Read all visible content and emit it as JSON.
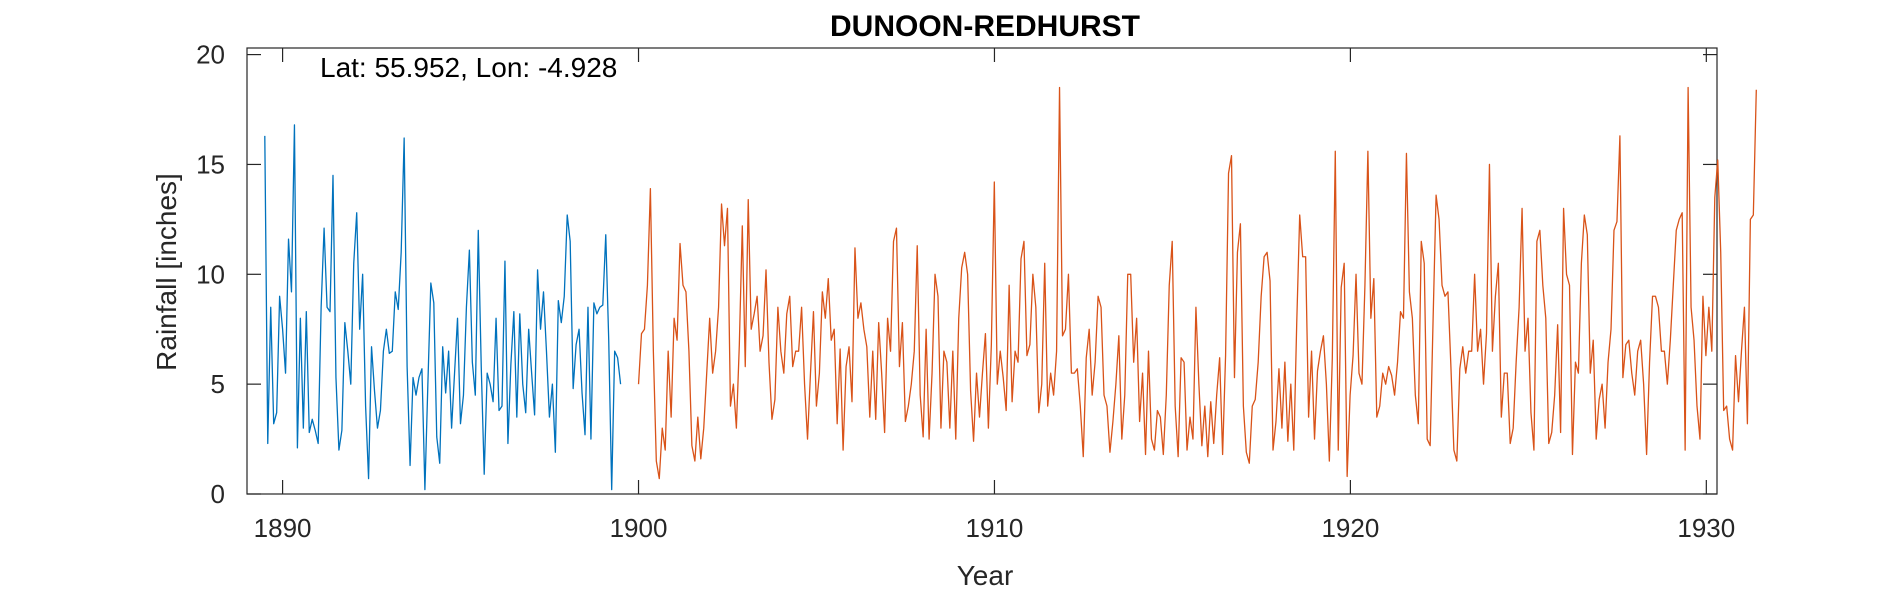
{
  "chart_data": {
    "type": "line",
    "title": "DUNOON-REDHURST",
    "xlabel": "Year",
    "ylabel": "Rainfall [inches]",
    "annotation": "Lat: 55.952, Lon: -4.928",
    "xlim": [
      1889,
      1930.3
    ],
    "ylim": [
      0,
      20.3
    ],
    "xticks": [
      1890,
      1900,
      1910,
      1920,
      1930
    ],
    "yticks": [
      0,
      5,
      10,
      15,
      20
    ],
    "grid": false,
    "legend": "none",
    "colors": {
      "series_blue": "#0072BD",
      "series_orange": "#D95319",
      "axis": "#262626"
    },
    "series": [
      {
        "color": "#0072BD",
        "x_start": 1889.5,
        "x_step": 0.0833,
        "values": [
          16.3,
          2.3,
          8.5,
          3.2,
          3.7,
          9.0,
          7.5,
          5.5,
          11.6,
          9.2,
          16.8,
          2.1,
          8.0,
          3.0,
          8.3,
          2.8,
          3.4,
          2.9,
          2.3,
          8.5,
          12.1,
          8.5,
          8.3,
          14.5,
          5.3,
          2.0,
          2.9,
          7.8,
          6.5,
          5.0,
          10.5,
          12.8,
          7.5,
          10.0,
          4.0,
          0.7,
          6.7,
          4.7,
          3.0,
          3.8,
          6.5,
          7.5,
          6.4,
          6.5,
          9.2,
          8.4,
          11.0,
          16.2,
          5.8,
          1.3,
          5.3,
          4.5,
          5.3,
          5.7,
          0.2,
          5.0,
          9.6,
          8.7,
          2.6,
          1.4,
          6.7,
          4.6,
          6.5,
          3.0,
          5.5,
          8.0,
          3.2,
          4.5,
          8.5,
          11.1,
          6.0,
          4.5,
          12.0,
          5.8,
          0.9,
          5.5,
          5.0,
          4.2,
          8.0,
          3.8,
          4.0,
          10.6,
          2.3,
          5.9,
          8.3,
          3.5,
          8.2,
          5.0,
          3.7,
          7.5,
          5.5,
          3.6,
          10.2,
          7.5,
          9.2,
          6.5,
          3.5,
          5.0,
          1.9,
          8.8,
          7.8,
          9.0,
          12.7,
          11.5,
          4.8,
          6.8,
          7.5,
          4.6,
          2.7,
          8.5,
          2.5,
          8.7,
          8.2,
          8.5,
          8.6,
          11.8,
          7.0,
          0.2,
          6.5,
          6.2,
          5.0
        ]
      },
      {
        "color": "#D95319",
        "x_start": 1900.0,
        "x_step": 0.0833,
        "values": [
          5.0,
          7.3,
          7.5,
          9.5,
          13.9,
          6.5,
          1.5,
          0.7,
          3.0,
          2.0,
          6.5,
          3.5,
          8.0,
          7.0,
          11.4,
          9.5,
          9.2,
          6.5,
          2.2,
          1.5,
          3.5,
          1.6,
          3.0,
          5.5,
          8.0,
          5.5,
          6.5,
          8.5,
          13.2,
          11.3,
          13.0,
          4.0,
          5.0,
          3.0,
          6.8,
          12.2,
          5.8,
          13.4,
          7.5,
          8.2,
          9.0,
          6.5,
          7.2,
          10.2,
          6.0,
          3.4,
          4.3,
          8.5,
          6.5,
          5.5,
          8.2,
          9.0,
          5.8,
          6.5,
          6.5,
          8.5,
          5.0,
          2.5,
          5.5,
          8.3,
          4.0,
          5.5,
          9.2,
          8.0,
          9.8,
          7.0,
          7.5,
          3.2,
          6.6,
          2.0,
          5.8,
          6.7,
          4.2,
          11.2,
          8.0,
          8.7,
          7.5,
          6.7,
          3.5,
          6.5,
          3.4,
          7.8,
          5.5,
          2.8,
          8.0,
          6.5,
          11.5,
          12.1,
          5.8,
          7.8,
          3.3,
          4.0,
          5.0,
          6.5,
          11.3,
          4.5,
          2.6,
          7.5,
          2.5,
          5.5,
          10.0,
          9.0,
          3.0,
          6.5,
          6.0,
          3.0,
          6.5,
          2.5,
          8.0,
          10.3,
          11.0,
          10.0,
          4.7,
          2.4,
          5.5,
          3.5,
          5.5,
          7.3,
          3.0,
          6.8,
          14.2,
          5.0,
          6.5,
          5.3,
          3.8,
          9.5,
          4.2,
          6.5,
          6.0,
          10.7,
          11.5,
          6.3,
          6.8,
          10.0,
          8.5,
          3.7,
          5.0,
          10.5,
          4.0,
          5.5,
          4.5,
          6.5,
          18.5,
          7.2,
          7.5,
          10.0,
          5.5,
          5.5,
          5.7,
          4.0,
          1.7,
          6.2,
          7.5,
          4.5,
          6.0,
          9.0,
          8.5,
          4.5,
          4.0,
          1.9,
          3.3,
          5.0,
          7.2,
          2.5,
          4.5,
          10.0,
          10.0,
          6.0,
          8.0,
          3.3,
          5.5,
          1.8,
          6.5,
          2.5,
          2.0,
          3.8,
          3.5,
          1.8,
          4.5,
          9.5,
          11.5,
          4.0,
          1.7,
          6.2,
          6.0,
          2.0,
          3.5,
          2.5,
          8.5,
          5.0,
          2.2,
          4.0,
          1.7,
          4.2,
          2.3,
          4.5,
          6.2,
          1.8,
          6.3,
          14.6,
          15.4,
          5.3,
          11.0,
          12.3,
          4.0,
          1.9,
          1.4,
          4.0,
          4.3,
          6.0,
          9.0,
          10.8,
          11.0,
          9.7,
          2.0,
          3.3,
          5.7,
          3.0,
          6.0,
          2.4,
          5.0,
          2.0,
          7.8,
          12.7,
          10.8,
          10.8,
          3.5,
          6.5,
          2.5,
          5.6,
          6.5,
          7.2,
          5.0,
          1.5,
          6.2,
          15.6,
          2.0,
          9.4,
          10.5,
          0.8,
          4.5,
          6.3,
          10.0,
          5.5,
          5.0,
          9.5,
          15.6,
          8.0,
          9.8,
          3.5,
          4.0,
          5.5,
          5.0,
          5.8,
          5.4,
          4.5,
          6.0,
          8.3,
          8.0,
          15.5,
          9.2,
          8.0,
          4.5,
          3.2,
          11.5,
          10.5,
          2.5,
          2.2,
          8.0,
          13.6,
          12.5,
          9.5,
          9.0,
          9.2,
          5.8,
          2.0,
          1.5,
          5.7,
          6.7,
          5.5,
          6.5,
          6.5,
          10.0,
          6.5,
          7.5,
          5.0,
          7.3,
          15.0,
          6.5,
          9.0,
          10.5,
          3.5,
          5.5,
          5.5,
          2.3,
          3.0,
          6.0,
          8.5,
          13.0,
          6.5,
          8.0,
          3.7,
          2.0,
          11.5,
          12.0,
          9.5,
          8.0,
          2.3,
          2.8,
          4.5,
          7.7,
          2.8,
          13.0,
          10.0,
          9.5,
          1.8,
          6.0,
          5.5,
          10.5,
          12.7,
          11.8,
          5.5,
          7.0,
          2.5,
          4.3,
          5.0,
          3.0,
          6.0,
          7.5,
          12.0,
          12.4,
          16.3,
          5.3,
          6.8,
          7.0,
          5.5,
          4.5,
          6.5,
          7.0,
          5.0,
          1.8,
          6.0,
          9.0,
          9.0,
          8.5,
          6.5,
          6.5,
          5.0,
          7.0,
          9.5,
          12.0,
          12.5,
          12.8,
          2.0,
          18.5,
          8.5,
          7.0,
          4.0,
          2.5,
          9.0,
          6.3,
          8.5,
          6.5,
          13.5,
          15.2,
          11.0,
          3.8,
          4.0,
          2.5,
          2.0,
          6.3,
          4.2,
          6.5,
          8.5,
          3.2,
          12.5,
          12.7,
          18.4
        ]
      }
    ]
  }
}
